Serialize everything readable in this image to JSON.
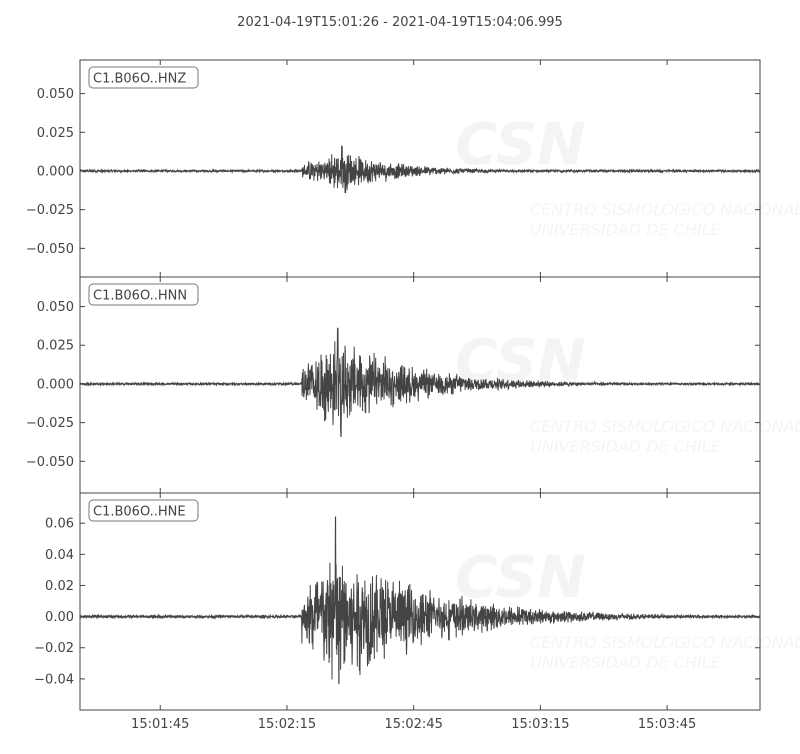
{
  "chart_data": {
    "type": "line",
    "title": "2021-04-19T15:01:26  -  2021-04-19T15:04:06.995",
    "start_time": "15:01:26",
    "end_time": "15:04:06.995",
    "x_ticks": [
      "15:01:45",
      "15:02:15",
      "15:02:45",
      "15:03:15",
      "15:03:45"
    ],
    "x_tick_seconds": [
      19,
      49,
      79,
      109,
      139
    ],
    "duration_seconds": 160.995,
    "grid": false,
    "line_color": "#444444",
    "watermark": {
      "logo": "CSN",
      "line1": "CENTRO SISMOLÓGICO NACIONAL",
      "line2": "UNIVERSIDAD DE CHILE"
    },
    "series": [
      {
        "name": "C1.B06O..HNZ",
        "ylim": [
          -0.0685,
          0.0717
        ],
        "y_ticks": [
          0.05,
          0.025,
          0.0,
          -0.025,
          -0.05
        ],
        "y_tick_labels": [
          "0.050",
          "0.025",
          "0.000",
          "−0.025",
          "−0.050"
        ],
        "onset_s": 52.5,
        "peak_s": 62,
        "peak_max": 0.016,
        "peak_min": -0.014,
        "noise": 0.0006,
        "decay_s": 14
      },
      {
        "name": "C1.B06O..HNN",
        "ylim": [
          -0.0705,
          0.0691
        ],
        "y_ticks": [
          0.05,
          0.025,
          0.0,
          -0.025,
          -0.05
        ],
        "y_tick_labels": [
          "0.050",
          "0.025",
          "0.000",
          "−0.025",
          "−0.050"
        ],
        "onset_s": 52.5,
        "peak_s": 61,
        "peak_max": 0.036,
        "peak_min": -0.034,
        "noise": 0.0006,
        "decay_s": 18
      },
      {
        "name": "C1.B06O..HNE",
        "ylim": [
          -0.06,
          0.0794
        ],
        "y_ticks": [
          0.06,
          0.04,
          0.02,
          0.0,
          -0.02,
          -0.04
        ],
        "y_tick_labels": [
          "0.06",
          "0.04",
          "0.02",
          "0.00",
          "−0.02",
          "−0.04"
        ],
        "onset_s": 52.5,
        "peak_s": 60.5,
        "peak_max": 0.064,
        "peak_min": -0.043,
        "noise": 0.0008,
        "decay_s": 22
      }
    ]
  }
}
